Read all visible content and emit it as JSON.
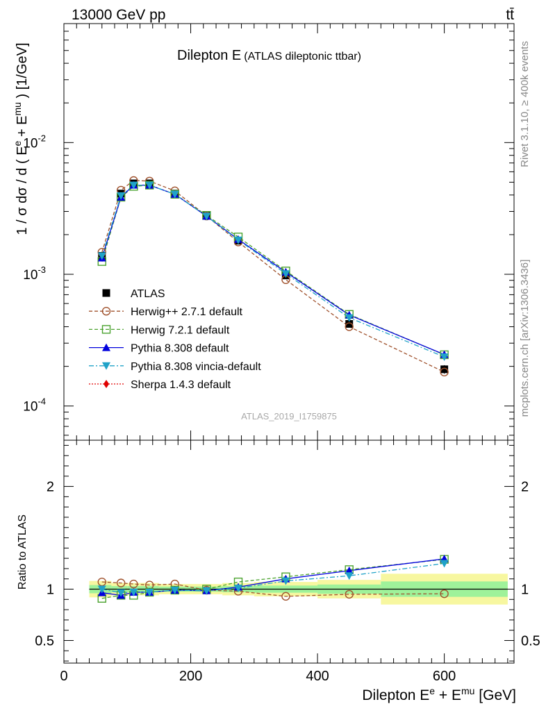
{
  "header": {
    "energy_label": "13000 GeV pp",
    "process_label": "tt̄"
  },
  "side_labels": {
    "rivet": "Rivet 3.1.10, ≥ 400k events",
    "mcplots": "mcplots.cern.ch [arXiv:1306.3436]"
  },
  "chart_data": {
    "type": "line",
    "title": "Dilepton E",
    "subtitle": "(ATLAS dileptonic ttbar)",
    "analysis_id": "ATLAS_2019_I1759875",
    "xlabel": "Dilepton E^e + E^mu [GeV]",
    "ylabel": "1 / σ  dσ / d ( E^e + E^mu ) [1/GeV]",
    "ratio_ylabel": "Ratio to ATLAS",
    "xlim": [
      0,
      710
    ],
    "ylim": [
      5.5e-05,
      0.08
    ],
    "ylog": true,
    "ratio_ylim": [
      0.28,
      2.45
    ],
    "x_ticks": [
      0,
      200,
      400,
      600
    ],
    "y_ticks": [
      {
        "value": 0.01,
        "base": "10",
        "exp": "-2"
      },
      {
        "value": 0.001,
        "base": "10",
        "exp": "-3"
      },
      {
        "value": 0.0001,
        "base": "10",
        "exp": "-4"
      }
    ],
    "ratio_ticks": [
      {
        "value": 0.5,
        "label": "0.5"
      },
      {
        "value": 1,
        "label": "1"
      },
      {
        "value": 2,
        "label": "2"
      }
    ],
    "x": [
      60,
      90,
      110,
      135,
      175,
      225,
      275,
      350,
      450,
      600
    ],
    "bin_edges": [
      40,
      75,
      100,
      120,
      150,
      200,
      250,
      300,
      400,
      500,
      700
    ],
    "data": {
      "name": "ATLAS",
      "values": [
        0.00138,
        0.0041,
        0.0049,
        0.0049,
        0.0041,
        0.0028,
        0.0018,
        0.00098,
        0.00042,
        0.00019
      ],
      "rel_unc": [
        0.04,
        0.03,
        0.03,
        0.03,
        0.025,
        0.025,
        0.03,
        0.035,
        0.045,
        0.075
      ]
    },
    "series": [
      {
        "name": "Herwig++ 2.7.1 default",
        "color": "#a0522d",
        "dash": "5,3",
        "marker": "circle-open",
        "values": [
          0.00147,
          0.00435,
          0.00515,
          0.0051,
          0.0043,
          0.00277,
          0.00176,
          0.00091,
          0.0004,
          0.000181
        ]
      },
      {
        "name": "Herwig 7.2.1 default",
        "color": "#4aa22e",
        "dash": "5,3",
        "marker": "square-open",
        "values": [
          0.00125,
          0.00385,
          0.00465,
          0.00475,
          0.00405,
          0.0028,
          0.00192,
          0.00106,
          0.000496,
          0.000245
        ]
      },
      {
        "name": "Pythia 8.308 default",
        "color": "#0000dd",
        "dash": "",
        "marker": "triangle-up",
        "values": [
          0.00133,
          0.00385,
          0.00475,
          0.00475,
          0.00405,
          0.00276,
          0.00184,
          0.00104,
          0.000491,
          0.000246
        ]
      },
      {
        "name": "Pythia 8.308 vincia-default",
        "color": "#1fa2c8",
        "dash": "7,3,2,3",
        "marker": "triangle-down",
        "values": [
          0.00138,
          0.00395,
          0.00475,
          0.00475,
          0.00405,
          0.00276,
          0.00182,
          0.00101,
          0.000468,
          0.000236
        ]
      }
    ],
    "legend_extra": {
      "name": "Sherpa 1.4.3 default",
      "color": "#e00000",
      "dash": "2,2",
      "marker": "diamond"
    },
    "ratio_series": [
      {
        "name": "Herwig++ 2.7.1 default",
        "values": [
          1.07,
          1.06,
          1.05,
          1.04,
          1.05,
          0.99,
          0.98,
          0.93,
          0.95,
          0.955
        ]
      },
      {
        "name": "Herwig 7.2.1 default",
        "values": [
          0.91,
          0.94,
          0.94,
          0.97,
          0.99,
          1.0,
          1.07,
          1.12,
          1.19,
          1.29
        ]
      },
      {
        "name": "Pythia 8.308 default",
        "values": [
          0.965,
          0.94,
          0.97,
          0.97,
          0.99,
          0.985,
          1.02,
          1.1,
          1.18,
          1.295
        ]
      },
      {
        "name": "Pythia 8.308 vincia-default",
        "values": [
          1.0,
          0.965,
          0.97,
          0.97,
          0.99,
          0.985,
          1.01,
          1.08,
          1.13,
          1.25
        ]
      }
    ]
  }
}
